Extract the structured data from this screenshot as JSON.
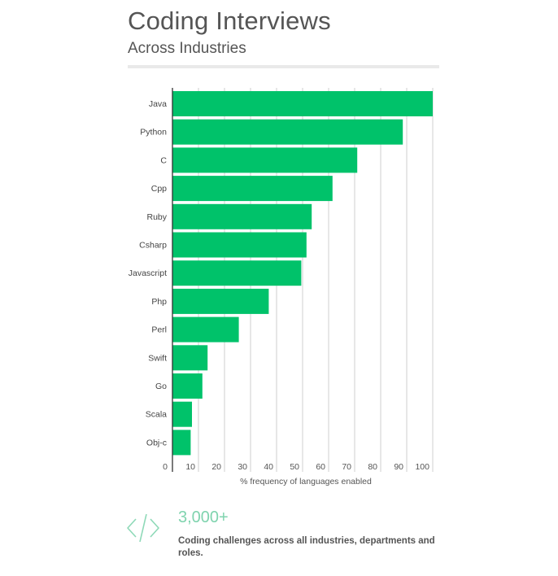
{
  "header": {
    "title": "Coding Interviews",
    "subtitle": "Across Industries"
  },
  "chart_data": {
    "type": "bar",
    "orientation": "horizontal",
    "categories": [
      "Java",
      "Python",
      "C",
      "Cpp",
      "Ruby",
      "Csharp",
      "Javascript",
      "Php",
      "Perl",
      "Swift",
      "Go",
      "Scala",
      "Obj-c"
    ],
    "values": [
      100,
      88.5,
      71,
      61.5,
      53.5,
      51.5,
      49.5,
      37,
      25.5,
      13.5,
      11.5,
      7.5,
      7
    ],
    "title": "",
    "xlabel": "% frequency of languages enabled",
    "ylabel": "",
    "xlim": [
      0,
      100
    ],
    "xticks": [
      "0",
      "10",
      "20",
      "30",
      "40",
      "50",
      "60",
      "70",
      "80",
      "90",
      "100"
    ],
    "grid": true,
    "bar_color": "#00c26a",
    "grid_color": "#cfcfcf"
  },
  "stat": {
    "icon": "code-icon",
    "number": "3,000+",
    "description": "Coding challenges across all industries, departments and roles.",
    "accent_color": "#7fd3ae"
  }
}
